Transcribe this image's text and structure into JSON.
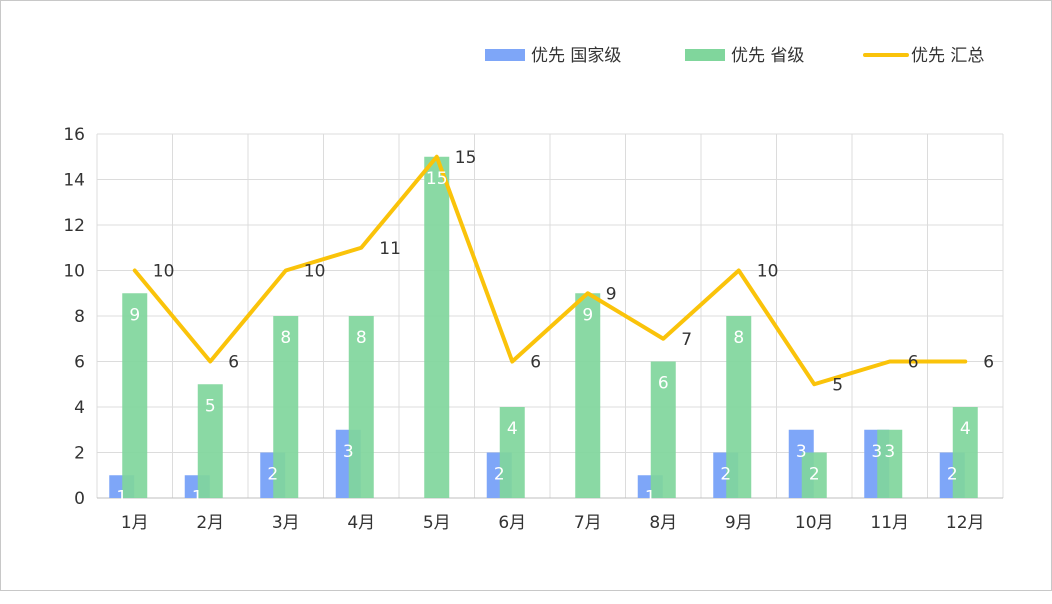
{
  "chart_data": {
    "type": "bar",
    "categories": [
      "1月",
      "2月",
      "3月",
      "4月",
      "5月",
      "6月",
      "7月",
      "8月",
      "9月",
      "10月",
      "11月",
      "12月"
    ],
    "series": [
      {
        "name": "优先 国家级",
        "type": "bar",
        "color": "#7ea6f8",
        "values": [
          1,
          1,
          2,
          3,
          0,
          2,
          0,
          1,
          2,
          3,
          3,
          2
        ]
      },
      {
        "name": "优先 省级",
        "type": "bar",
        "color": "#80d69c",
        "values": [
          9,
          5,
          8,
          8,
          15,
          4,
          9,
          6,
          8,
          2,
          3,
          4
        ]
      },
      {
        "name": "优先 汇总",
        "type": "line",
        "color": "#fac30a",
        "values": [
          10,
          6,
          10,
          11,
          15,
          6,
          9,
          7,
          10,
          5,
          6,
          6
        ]
      }
    ],
    "ylim": [
      0,
      16
    ],
    "yticks": [
      0,
      2,
      4,
      6,
      8,
      10,
      12,
      14,
      16
    ],
    "grid": true,
    "legend": "top-right"
  }
}
